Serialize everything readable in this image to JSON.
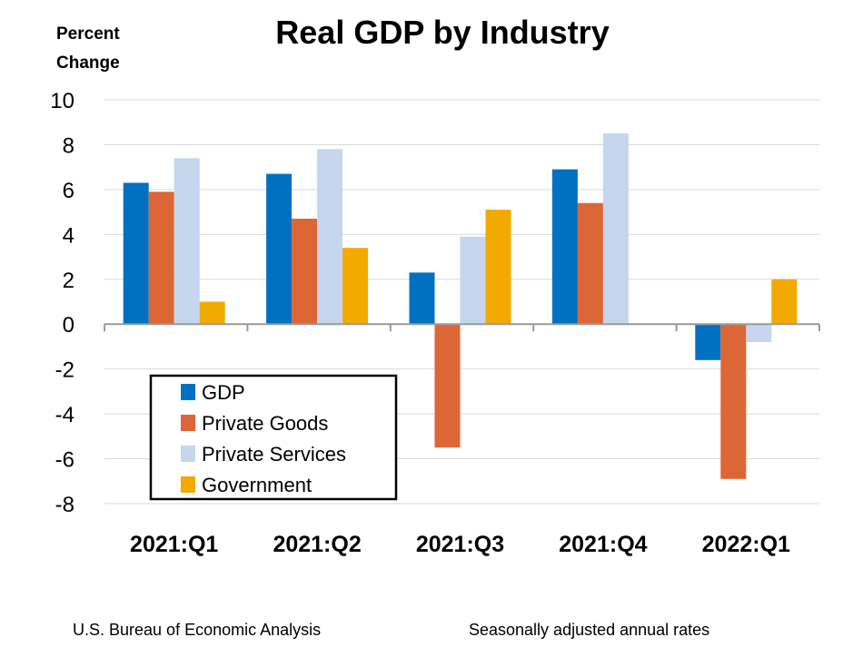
{
  "chart_data": {
    "type": "bar",
    "title": "Real GDP by Industry",
    "ylabel": [
      "Percent",
      "Change"
    ],
    "xlabel": "",
    "categories": [
      "2021:Q1",
      "2021:Q2",
      "2021:Q3",
      "2021:Q4",
      "2022:Q1"
    ],
    "ylim": [
      -8,
      10
    ],
    "yticks": [
      10,
      8,
      6,
      4,
      2,
      0,
      -2,
      -4,
      -6,
      -8
    ],
    "grid": true,
    "legend_position": "bottom-left",
    "series": [
      {
        "name": "GDP",
        "color": "#0070C0",
        "values": [
          6.3,
          6.7,
          2.3,
          6.9,
          -1.6
        ]
      },
      {
        "name": "Private Goods",
        "color": "#DD6637",
        "values": [
          5.9,
          4.7,
          -5.5,
          5.4,
          -6.9
        ]
      },
      {
        "name": "Private Services",
        "color": "#C5D6EE",
        "values": [
          7.4,
          7.8,
          3.9,
          8.5,
          -0.8
        ]
      },
      {
        "name": "Government",
        "color": "#F2A900",
        "values": [
          1.0,
          3.4,
          5.1,
          0.0,
          2.0
        ]
      }
    ]
  },
  "footer": {
    "source": "U.S. Bureau of Economic Analysis",
    "note": "Seasonally adjusted annual rates"
  }
}
